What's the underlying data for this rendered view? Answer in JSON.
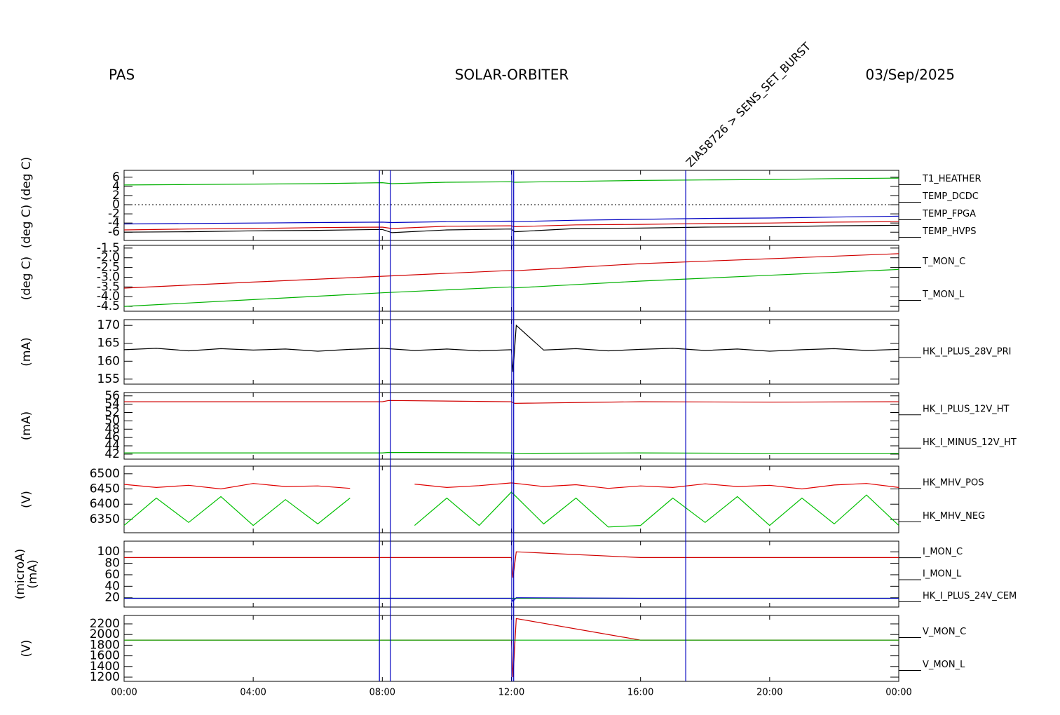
{
  "header": {
    "left": "PAS",
    "center": "SOLAR-ORBITER",
    "right": "03/Sep/2025"
  },
  "events": [
    {
      "x": 7.91
    },
    {
      "x": 8.25
    },
    {
      "x": 12.01
    },
    {
      "x": 12.07
    },
    {
      "x": 17.4,
      "label": "ZIA58726 > SENS_SET_BURST"
    }
  ],
  "chart_data": [
    {
      "type": "line",
      "ylabel": [
        "(deg C)",
        "(deg C)"
      ],
      "xlim": [
        0,
        24
      ],
      "xticks": [
        0,
        4,
        8,
        12,
        16,
        20,
        24
      ],
      "ylim": [
        -7.8,
        7.5
      ],
      "yticks": [
        6,
        4,
        2,
        0,
        -2,
        -4,
        -6
      ],
      "hline": 0,
      "x": [
        0,
        2,
        4,
        6,
        8,
        8.3,
        10,
        12,
        12.1,
        14,
        16,
        18,
        20,
        22,
        24
      ],
      "series": [
        {
          "name": "T1_HEATHER",
          "color": "#d00000",
          "values": [
            -5.5,
            -5.3,
            -5.2,
            -5.0,
            -4.9,
            -5.2,
            -4.7,
            -4.6,
            -4.8,
            -4.4,
            -4.3,
            -4.1,
            -4.0,
            -3.8,
            -3.7
          ]
        },
        {
          "name": "TEMP_DCDC",
          "color": "#00b000",
          "values": [
            4.3,
            4.4,
            4.5,
            4.6,
            4.8,
            4.6,
            4.9,
            5.0,
            4.9,
            5.1,
            5.3,
            5.4,
            5.5,
            5.7,
            5.8
          ]
        },
        {
          "name": "TEMP_FPGA",
          "color": "#0000c0",
          "values": [
            -4.2,
            -4.1,
            -4.0,
            -3.9,
            -3.8,
            -3.9,
            -3.7,
            -3.6,
            -3.7,
            -3.4,
            -3.2,
            -3.0,
            -2.9,
            -2.7,
            -2.5
          ]
        },
        {
          "name": "TEMP_HVPS",
          "color": "#000000",
          "values": [
            -6.0,
            -5.9,
            -5.7,
            -5.6,
            -5.4,
            -6.1,
            -5.5,
            -5.3,
            -5.9,
            -5.2,
            -5.1,
            -4.9,
            -4.8,
            -4.6,
            -4.5
          ]
        }
      ]
    },
    {
      "type": "line",
      "ylabel": [
        "(deg C)"
      ],
      "xlim": [
        0,
        24
      ],
      "xticks": [
        0,
        4,
        8,
        12,
        16,
        20,
        24
      ],
      "ylim": [
        -4.75,
        -1.36
      ],
      "yticks": [
        -1.5,
        {
          "value": -2,
          "label": "-2.0"
        },
        -2.5,
        {
          "value": -3,
          "label": "-3.0"
        },
        -3.5,
        {
          "value": -4,
          "label": "-4.0"
        },
        -4.5
      ],
      "x": [
        0,
        4,
        8,
        12,
        12.1,
        16,
        20,
        24
      ],
      "series": [
        {
          "name": "T_MON_C",
          "color": "#d00000",
          "values": [
            -3.56,
            -3.25,
            -2.95,
            -2.65,
            -2.67,
            -2.3,
            -2.05,
            -1.79
          ]
        },
        {
          "name": "T_MON_L",
          "color": "#00b000",
          "values": [
            -4.5,
            -4.15,
            -3.8,
            -3.5,
            -3.55,
            -3.2,
            -2.9,
            -2.6
          ]
        }
      ]
    },
    {
      "type": "line",
      "ylabel": [
        "(mA)"
      ],
      "xlim": [
        0,
        24
      ],
      "xticks": [
        0,
        4,
        8,
        12,
        16,
        20,
        24
      ],
      "ylim": [
        153.6,
        171.6
      ],
      "yticks": [
        170,
        165,
        160,
        155
      ],
      "x": [
        0,
        1,
        2,
        3,
        4,
        5,
        6,
        7,
        8,
        9,
        10,
        11,
        12,
        12.05,
        12.15,
        13,
        14,
        15,
        16,
        17,
        18,
        19,
        20,
        21,
        22,
        23,
        24
      ],
      "series": [
        {
          "name": "HK_I_PLUS_28V_PRI",
          "color": "#000000",
          "values": [
            163.2,
            163.6,
            162.9,
            163.5,
            163.1,
            163.4,
            162.8,
            163.3,
            163.6,
            163.0,
            163.4,
            162.9,
            163.2,
            157,
            170,
            163.1,
            163.5,
            162.9,
            163.3,
            163.6,
            163.0,
            163.4,
            162.8,
            163.2,
            163.5,
            163.0,
            163.3
          ]
        }
      ]
    },
    {
      "type": "line",
      "ylabel": [
        "(mA)"
      ],
      "xlim": [
        0,
        24
      ],
      "xticks": [
        0,
        4,
        8,
        12,
        16,
        20,
        24
      ],
      "ylim": [
        40.8,
        56.8
      ],
      "yticks": [
        56,
        54,
        52,
        50,
        48,
        46,
        44,
        42
      ],
      "x": [
        0,
        4,
        8,
        8.2,
        12,
        12.1,
        16,
        20,
        24
      ],
      "series": [
        {
          "name": "HK_I_PLUS_12V_HT",
          "color": "#d00000",
          "values": [
            54.6,
            54.6,
            54.6,
            54.9,
            54.6,
            54.2,
            54.6,
            54.5,
            54.6
          ]
        },
        {
          "name": "HK_I_MINUS_12V_HT",
          "color": "#00b000",
          "values": [
            42.3,
            42.3,
            42.3,
            42.4,
            42.3,
            42.2,
            42.3,
            42.2,
            42.2
          ]
        }
      ]
    },
    {
      "type": "line",
      "ylabel": [
        "(V)"
      ],
      "xlim": [
        0,
        24
      ],
      "xticks": [
        0,
        4,
        8,
        12,
        16,
        20,
        24
      ],
      "ylim": [
        6306,
        6525
      ],
      "yticks": [
        6500,
        6450,
        6400,
        6350
      ],
      "x": [
        0,
        1,
        2,
        3,
        4,
        5,
        6,
        7,
        8,
        9,
        10,
        11,
        12,
        13,
        14,
        15,
        16,
        17,
        18,
        19,
        20,
        21,
        22,
        23,
        24
      ],
      "series": [
        {
          "name": "HK_MHV_POS",
          "color": "#e00000",
          "values": [
            6465,
            6455,
            6462,
            6450,
            6468,
            6458,
            6460,
            6452,
            null,
            6466,
            6455,
            6461,
            6470,
            6458,
            6464,
            6452,
            6460,
            6455,
            6467,
            6458,
            6462,
            6450,
            6463,
            6468,
            6455
          ]
        },
        {
          "name": "HK_MHV_NEG",
          "color": "#00c000",
          "values": [
            6330,
            6420,
            6340,
            6425,
            6330,
            6415,
            6335,
            6420,
            null,
            6330,
            6420,
            6330,
            6440,
            6335,
            6420,
            6325,
            6330,
            6420,
            6340,
            6425,
            6330,
            6420,
            6335,
            6430,
            6330
          ]
        }
      ]
    },
    {
      "type": "line",
      "ylabel": [
        "(microA)",
        "(mA)"
      ],
      "xlim": [
        0,
        24
      ],
      "xticks": [
        0,
        4,
        8,
        12,
        16,
        20,
        24
      ],
      "ylim": [
        3.8,
        118.5
      ],
      "yticks": [
        100,
        80,
        60,
        40,
        20
      ],
      "x": [
        0,
        4,
        8,
        12,
        12.05,
        12.15,
        16,
        20,
        24
      ],
      "series": [
        {
          "name": "I_MON_C",
          "color": "#d00000",
          "values": [
            90,
            90,
            90,
            90,
            55,
            100,
            90,
            90,
            90
          ]
        },
        {
          "name": "I_MON_L",
          "color": "#00b000",
          "values": [
            19,
            19,
            19,
            19,
            19,
            19,
            19,
            19,
            19
          ]
        },
        {
          "name": "HK_I_PLUS_24V_CEM",
          "color": "#0000c0",
          "values": [
            19,
            19,
            19,
            19,
            14,
            20,
            19,
            19,
            19
          ]
        }
      ]
    },
    {
      "type": "line",
      "ylabel": [
        "(V)"
      ],
      "xlim": [
        0,
        24
      ],
      "xticks": [
        {
          "value": 0,
          "label": "00:00"
        },
        {
          "value": 4,
          "label": "04:00"
        },
        {
          "value": 8,
          "label": "08:00"
        },
        {
          "value": 12,
          "label": "12:00"
        },
        {
          "value": 16,
          "label": "16:00"
        },
        {
          "value": 20,
          "label": "20:00"
        },
        {
          "value": 24,
          "label": "00:00"
        }
      ],
      "ylim": [
        1121,
        2358
      ],
      "yticks": [
        2200,
        2000,
        1800,
        1600,
        1400,
        1200
      ],
      "x": [
        0,
        4,
        8,
        12,
        12.05,
        12.15,
        16,
        20,
        24
      ],
      "series": [
        {
          "name": "V_MON_C",
          "color": "#d00000",
          "values": [
            1895,
            1895,
            1895,
            1895,
            1200,
            2300,
            1895,
            1895,
            1895
          ]
        },
        {
          "name": "V_MON_L",
          "color": "#00b000",
          "values": [
            1895,
            1895,
            1895,
            1895,
            1895,
            1895,
            1895,
            1895,
            1895
          ]
        }
      ]
    }
  ]
}
